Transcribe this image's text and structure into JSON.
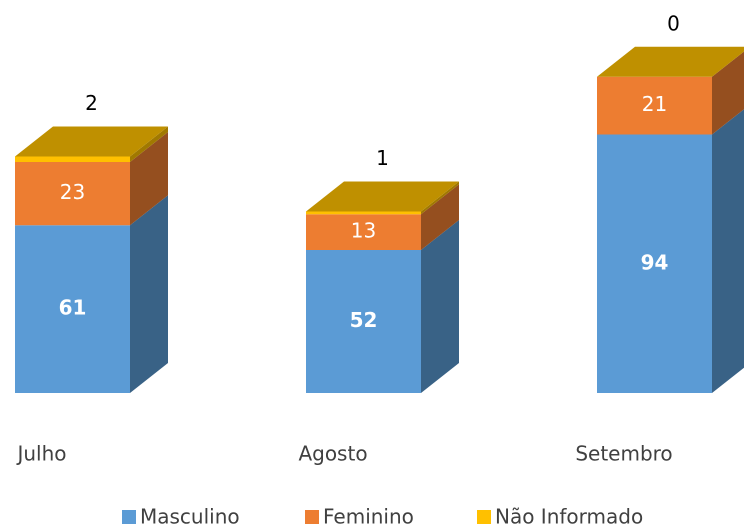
{
  "chart_data": {
    "type": "bar3d_stacked",
    "categories": [
      "Julho",
      "Agosto",
      "Setembro"
    ],
    "series": [
      {
        "name": "Masculino",
        "color": "#5b9bd5",
        "values": [
          61,
          52,
          94
        ]
      },
      {
        "name": "Feminino",
        "color": "#ed7d31",
        "values": [
          23,
          13,
          21
        ]
      },
      {
        "name": "Não Informado",
        "color": "#ffc000",
        "values": [
          2,
          1,
          0
        ]
      }
    ]
  }
}
